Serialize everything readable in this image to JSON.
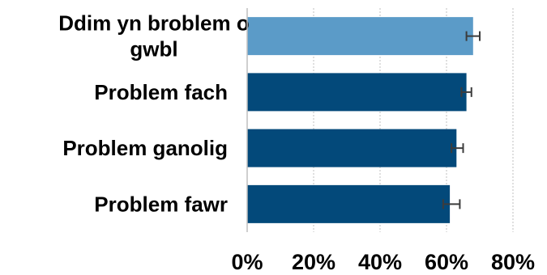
{
  "chart_data": {
    "type": "bar",
    "orientation": "horizontal",
    "categories": [
      "Ddim yn broblem o gwbl",
      "Problem fach",
      "Problem ganolig",
      "Problem fawr"
    ],
    "category_display": [
      [
        "Ddim yn broblem o",
        "gwbl"
      ],
      [
        "Problem fach"
      ],
      [
        "Problem ganolig"
      ],
      [
        "Problem fawr"
      ]
    ],
    "values": [
      68,
      66,
      63,
      61
    ],
    "error_low": [
      66,
      64.5,
      61.5,
      59
    ],
    "error_high": [
      70,
      67.5,
      65,
      64
    ],
    "bar_colors": [
      "#5b9bc8",
      "#03497a",
      "#03497a",
      "#03497a"
    ],
    "xlim": [
      0,
      80
    ],
    "xticks": [
      0,
      20,
      40,
      60,
      80
    ],
    "xtick_labels": [
      "0%",
      "20%",
      "40%",
      "60%",
      "80%"
    ],
    "grid": "vertical dashed",
    "title": "",
    "xlabel": "",
    "ylabel": ""
  }
}
